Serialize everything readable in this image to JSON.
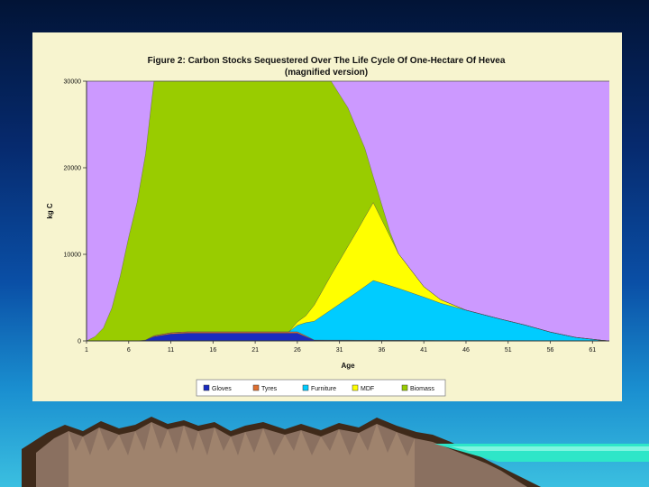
{
  "chart_data": {
    "type": "area",
    "stacked": true,
    "title": "Figure 2: Carbon Stocks Sequestered Over The Life Cycle Of One-Hectare Of Hevea",
    "subtitle": "(magnified version)",
    "xlabel": "Age",
    "ylabel": "kg C",
    "x_ticks": [
      "1",
      "6",
      "11",
      "16",
      "21",
      "26",
      "31",
      "36",
      "41",
      "46",
      "51",
      "56",
      "61"
    ],
    "x_range": [
      1,
      63
    ],
    "ylim": [
      0,
      30000
    ],
    "y_ticks": [
      0,
      10000,
      20000,
      30000
    ],
    "y_tick_labels": [
      "0",
      "10000",
      "20000",
      "30000"
    ],
    "legend_position": "bottom",
    "plot_background": "#cc99ff",
    "series": [
      {
        "name": "Gloves",
        "color": "#1a2bbf",
        "x": [
          1,
          7,
          8,
          9,
          11,
          13,
          26,
          27,
          28,
          63
        ],
        "values": [
          0,
          0,
          100,
          500,
          800,
          900,
          900,
          500,
          100,
          0
        ]
      },
      {
        "name": "Tyres",
        "color": "#e07030",
        "x": [
          1,
          8,
          9,
          11,
          13,
          26,
          27,
          28,
          63
        ],
        "values": [
          0,
          0,
          100,
          150,
          150,
          150,
          100,
          0,
          0
        ]
      },
      {
        "name": "Furniture",
        "color": "#00ccff",
        "x": [
          1,
          25,
          27,
          30,
          33,
          35,
          38,
          41,
          43,
          46,
          50,
          53,
          56,
          59,
          62,
          63
        ],
        "values": [
          0,
          0,
          1500,
          3500,
          5500,
          6900,
          6000,
          5000,
          4300,
          3500,
          2500,
          1800,
          1000,
          400,
          80,
          0
        ]
      },
      {
        "name": "MDF",
        "color": "#ffff00",
        "x": [
          1,
          25,
          27,
          30,
          33,
          35,
          38,
          41,
          43,
          46,
          63
        ],
        "values": [
          0,
          0,
          800,
          4000,
          7000,
          9000,
          4000,
          1200,
          400,
          0,
          0
        ]
      },
      {
        "name": "Biomass",
        "color": "#99cc00",
        "x": [
          1,
          2,
          3,
          4,
          5,
          6,
          7,
          8,
          9,
          12,
          20,
          25,
          28,
          30,
          32,
          34,
          35,
          37,
          38,
          63
        ],
        "values": [
          0,
          500,
          1500,
          3800,
          7500,
          12000,
          16000,
          21500,
          30000,
          30000,
          30000,
          30000,
          28000,
          23000,
          16000,
          8000,
          3000,
          500,
          0,
          0
        ]
      }
    ]
  }
}
